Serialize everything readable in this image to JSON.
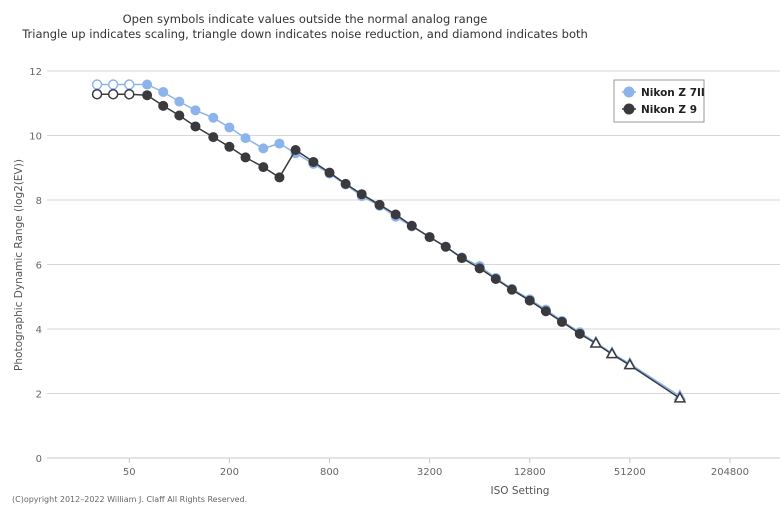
{
  "chart_data": {
    "type": "line",
    "subtitle_lines": [
      "Open symbols indicate values outside the normal analog range",
      "Triangle up indicates scaling, triangle down indicates noise reduction, and diamond indicates both"
    ],
    "xlabel": "ISO Setting",
    "ylabel": "Photographic Dynamic Range (log2(EV))",
    "x_scale": "log2",
    "xlim": [
      16,
      409600
    ],
    "x_ticks": [
      50,
      200,
      800,
      3200,
      12800,
      51200,
      204800
    ],
    "x_tick_labels": [
      "50",
      "200",
      "800",
      "3200",
      "12800",
      "51200",
      "204800"
    ],
    "ylim": [
      0,
      12
    ],
    "y_ticks": [
      0,
      2,
      4,
      6,
      8,
      10,
      12
    ],
    "grid": true,
    "legend_position": "top-right",
    "credit": "(C)opyright 2012–2022 William J. Claff All Rights Reserved.",
    "series": [
      {
        "name": "Nikon Z 7II",
        "color": "#8cb4ea",
        "points": [
          {
            "x": 32,
            "y": 11.58,
            "marker": "open-circle"
          },
          {
            "x": 40,
            "y": 11.58,
            "marker": "open-circle"
          },
          {
            "x": 50,
            "y": 11.58,
            "marker": "open-circle"
          },
          {
            "x": 64,
            "y": 11.58,
            "marker": "circle"
          },
          {
            "x": 80,
            "y": 11.35,
            "marker": "circle"
          },
          {
            "x": 100,
            "y": 11.05,
            "marker": "circle"
          },
          {
            "x": 125,
            "y": 10.78,
            "marker": "circle"
          },
          {
            "x": 160,
            "y": 10.55,
            "marker": "circle"
          },
          {
            "x": 200,
            "y": 10.25,
            "marker": "circle"
          },
          {
            "x": 250,
            "y": 9.92,
            "marker": "circle"
          },
          {
            "x": 320,
            "y": 9.6,
            "marker": "circle"
          },
          {
            "x": 400,
            "y": 9.75,
            "marker": "circle"
          },
          {
            "x": 500,
            "y": 9.45,
            "marker": "circle"
          },
          {
            "x": 640,
            "y": 9.12,
            "marker": "circle"
          },
          {
            "x": 800,
            "y": 8.82,
            "marker": "circle"
          },
          {
            "x": 1000,
            "y": 8.48,
            "marker": "circle"
          },
          {
            "x": 1250,
            "y": 8.12,
            "marker": "circle"
          },
          {
            "x": 1600,
            "y": 7.82,
            "marker": "circle"
          },
          {
            "x": 2000,
            "y": 7.48,
            "marker": "circle"
          },
          {
            "x": 2500,
            "y": 7.18,
            "marker": "circle"
          },
          {
            "x": 3200,
            "y": 6.85,
            "marker": "circle"
          },
          {
            "x": 4000,
            "y": 6.55,
            "marker": "circle"
          },
          {
            "x": 5000,
            "y": 6.22,
            "marker": "circle"
          },
          {
            "x": 6400,
            "y": 5.95,
            "marker": "circle"
          },
          {
            "x": 8000,
            "y": 5.58,
            "marker": "circle"
          },
          {
            "x": 10000,
            "y": 5.25,
            "marker": "circle"
          },
          {
            "x": 12800,
            "y": 4.92,
            "marker": "circle"
          },
          {
            "x": 16000,
            "y": 4.6,
            "marker": "circle"
          },
          {
            "x": 20000,
            "y": 4.25,
            "marker": "circle"
          },
          {
            "x": 25600,
            "y": 3.9,
            "marker": "circle"
          },
          {
            "x": 32000,
            "y": 3.58,
            "marker": "open-triangle-up"
          },
          {
            "x": 40000,
            "y": 3.25,
            "marker": "open-triangle-up"
          },
          {
            "x": 51200,
            "y": 2.92,
            "marker": "open-triangle-up"
          },
          {
            "x": 102400,
            "y": 1.92,
            "marker": "open-triangle-up"
          }
        ]
      },
      {
        "name": "Nikon Z 9",
        "color": "#3a3a3e",
        "points": [
          {
            "x": 32,
            "y": 11.28,
            "marker": "open-circle"
          },
          {
            "x": 40,
            "y": 11.28,
            "marker": "open-circle"
          },
          {
            "x": 50,
            "y": 11.28,
            "marker": "open-circle"
          },
          {
            "x": 64,
            "y": 11.25,
            "marker": "circle"
          },
          {
            "x": 80,
            "y": 10.92,
            "marker": "circle"
          },
          {
            "x": 100,
            "y": 10.62,
            "marker": "circle"
          },
          {
            "x": 125,
            "y": 10.28,
            "marker": "circle"
          },
          {
            "x": 160,
            "y": 9.95,
            "marker": "circle"
          },
          {
            "x": 200,
            "y": 9.65,
            "marker": "circle"
          },
          {
            "x": 250,
            "y": 9.32,
            "marker": "circle"
          },
          {
            "x": 320,
            "y": 9.02,
            "marker": "circle"
          },
          {
            "x": 400,
            "y": 8.7,
            "marker": "circle"
          },
          {
            "x": 500,
            "y": 9.55,
            "marker": "circle"
          },
          {
            "x": 640,
            "y": 9.18,
            "marker": "circle"
          },
          {
            "x": 800,
            "y": 8.85,
            "marker": "circle"
          },
          {
            "x": 1000,
            "y": 8.5,
            "marker": "circle"
          },
          {
            "x": 1250,
            "y": 8.18,
            "marker": "circle"
          },
          {
            "x": 1600,
            "y": 7.85,
            "marker": "circle"
          },
          {
            "x": 2000,
            "y": 7.55,
            "marker": "circle"
          },
          {
            "x": 2500,
            "y": 7.2,
            "marker": "circle"
          },
          {
            "x": 3200,
            "y": 6.85,
            "marker": "circle"
          },
          {
            "x": 4000,
            "y": 6.55,
            "marker": "circle"
          },
          {
            "x": 5000,
            "y": 6.2,
            "marker": "circle"
          },
          {
            "x": 6400,
            "y": 5.88,
            "marker": "circle"
          },
          {
            "x": 8000,
            "y": 5.55,
            "marker": "circle"
          },
          {
            "x": 10000,
            "y": 5.22,
            "marker": "circle"
          },
          {
            "x": 12800,
            "y": 4.88,
            "marker": "circle"
          },
          {
            "x": 16000,
            "y": 4.55,
            "marker": "circle"
          },
          {
            "x": 20000,
            "y": 4.22,
            "marker": "circle"
          },
          {
            "x": 25600,
            "y": 3.85,
            "marker": "circle"
          },
          {
            "x": 32000,
            "y": 3.55,
            "marker": "open-triangle-up"
          },
          {
            "x": 40000,
            "y": 3.22,
            "marker": "open-triangle-up"
          },
          {
            "x": 51200,
            "y": 2.88,
            "marker": "open-triangle-up"
          },
          {
            "x": 102400,
            "y": 1.85,
            "marker": "open-triangle-up"
          }
        ]
      }
    ]
  }
}
